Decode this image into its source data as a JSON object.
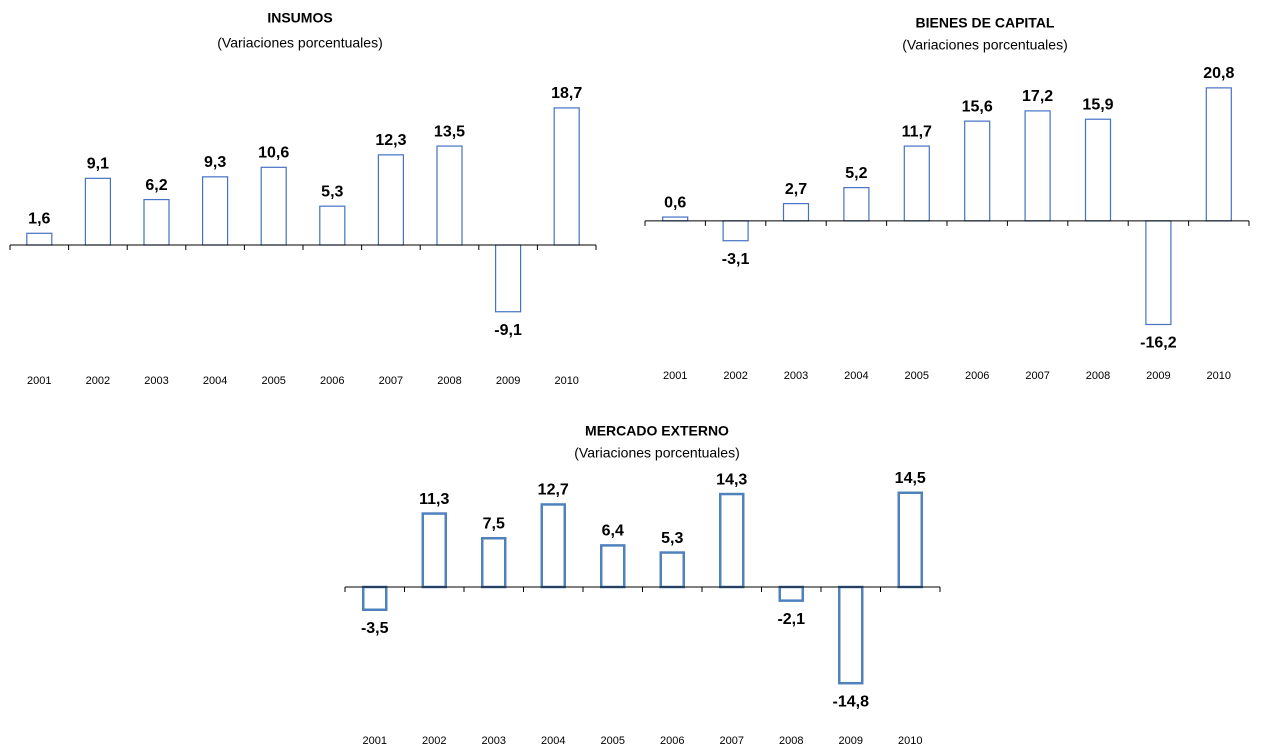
{
  "chart_data": [
    {
      "type": "bar",
      "title": "INSUMOS",
      "subtitle": "(Variaciones  porcentuales)",
      "categories": [
        "2001",
        "2002",
        "2003",
        "2004",
        "2005",
        "2006",
        "2007",
        "2008",
        "2009",
        "2010"
      ],
      "values": [
        1.6,
        9.1,
        6.2,
        9.3,
        10.6,
        5.3,
        12.3,
        13.5,
        -9.1,
        18.7
      ],
      "value_labels": [
        "1,6",
        "9,1",
        "6,2",
        "9,3",
        "10,6",
        "5,3",
        "12,3",
        "13,5",
        "-9,1",
        "18,7"
      ],
      "color": "#4472c4",
      "ylim": [
        -12,
        20
      ]
    },
    {
      "type": "bar",
      "title": "BIENES DE CAPITAL",
      "subtitle": "(Variaciones porcentuales)",
      "categories": [
        "2001",
        "2002",
        "2003",
        "2004",
        "2005",
        "2006",
        "2007",
        "2008",
        "2009",
        "2010"
      ],
      "values": [
        0.6,
        -3.1,
        2.7,
        5.2,
        11.7,
        15.6,
        17.2,
        15.9,
        -16.2,
        20.8
      ],
      "value_labels": [
        "0,6",
        "-3,1",
        "2,7",
        "5,2",
        "11,7",
        "15,6",
        "17,2",
        "15,9",
        "-16,2",
        "20,8"
      ],
      "color": "#4472c4",
      "ylim": [
        -18,
        22
      ]
    },
    {
      "type": "bar",
      "title": "MERCADO EXTERNO",
      "subtitle": "(Variaciones porcentuales)",
      "categories": [
        "2001",
        "2002",
        "2003",
        "2004",
        "2005",
        "2006",
        "2007",
        "2008",
        "2009",
        "2010"
      ],
      "values": [
        -3.5,
        11.3,
        7.5,
        12.7,
        6.4,
        5.3,
        14.3,
        -2.1,
        -14.8,
        14.5
      ],
      "value_labels": [
        "-3,5",
        "11,3",
        "7,5",
        "12,7",
        "6,4",
        "5,3",
        "14,3",
        "-2,1",
        "-14,8",
        "14,5"
      ],
      "color": "#4f81bd",
      "ylim": [
        -16,
        16
      ]
    }
  ]
}
